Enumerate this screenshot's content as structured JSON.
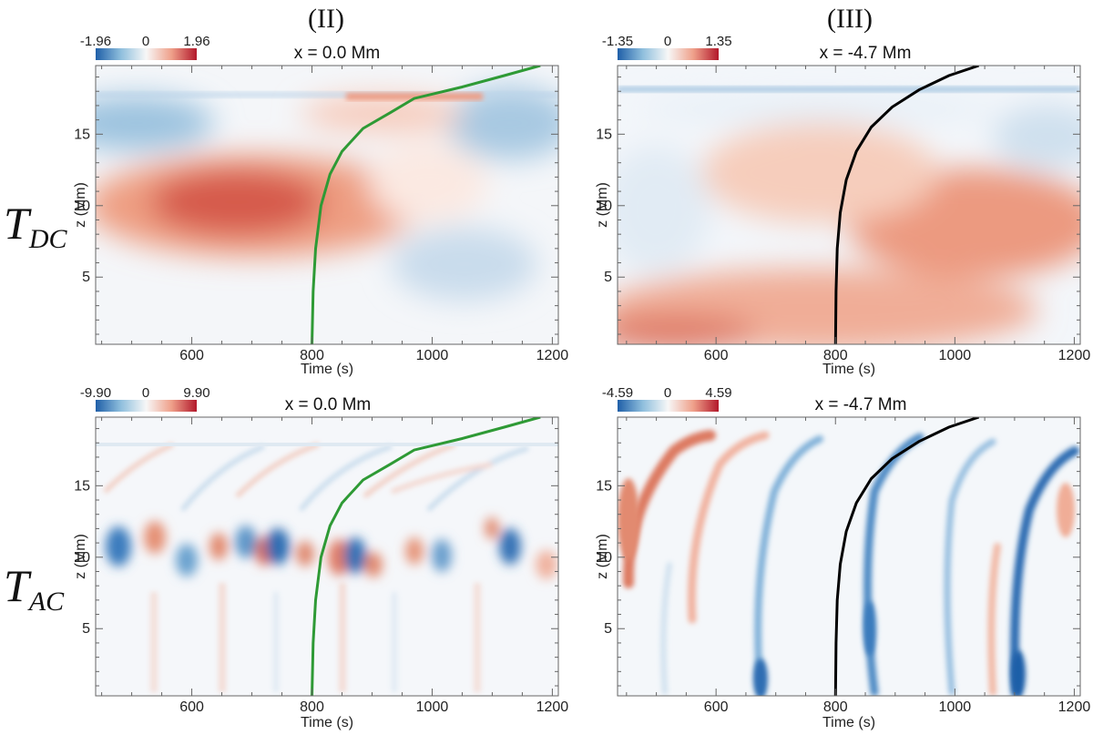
{
  "figure": {
    "column_titles": [
      "(II)",
      "(III)"
    ],
    "row_labels": [
      {
        "main": "T",
        "sub": "DC"
      },
      {
        "main": "T",
        "sub": "AC"
      }
    ]
  },
  "colors": {
    "cmap_negative": "#1f5fa8",
    "cmap_zero": "#f7f7f7",
    "cmap_positive": "#b2182b",
    "track_green": "#2e9a35",
    "track_black": "#000000",
    "frame": "#666666"
  },
  "chart_data": [
    {
      "type": "heatmap",
      "id": "II-DC",
      "title": "x = 0.0 Mm",
      "xlabel": "Time (s)",
      "ylabel": "z (Mm)",
      "xlim": [
        440,
        1210
      ],
      "ylim": [
        0.3,
        19.8
      ],
      "xticks": [
        600,
        800,
        1000,
        1200
      ],
      "yticks": [
        5,
        10,
        15
      ],
      "colorbar": {
        "min": "-1.96",
        "mid": "0",
        "max": "1.96"
      },
      "track_color": "green",
      "track": {
        "t": [
          800,
          802,
          806,
          815,
          830,
          850,
          885,
          930,
          970,
          1050,
          1120,
          1180
        ],
        "z": [
          0.3,
          4,
          7,
          10,
          12.2,
          13.8,
          15.4,
          16.5,
          17.5,
          18.3,
          19.1,
          19.8
        ]
      }
    },
    {
      "type": "heatmap",
      "id": "III-DC",
      "title": "x = -4.7 Mm",
      "xlabel": "Time (s)",
      "ylabel": "z (Mm)",
      "xlim": [
        435,
        1210
      ],
      "ylim": [
        0.3,
        19.8
      ],
      "xticks": [
        600,
        800,
        1000,
        1200
      ],
      "yticks": [
        5,
        10,
        15
      ],
      "colorbar": {
        "min": "-1.35",
        "mid": "0",
        "max": "1.35"
      },
      "track_color": "black",
      "track": {
        "t": [
          800,
          801,
          803,
          808,
          818,
          835,
          860,
          895,
          940,
          990,
          1040
        ],
        "z": [
          0.3,
          4,
          7,
          9.5,
          11.8,
          13.8,
          15.5,
          16.9,
          18.1,
          19.1,
          19.8
        ]
      }
    },
    {
      "type": "heatmap",
      "id": "II-AC",
      "title": "x = 0.0 Mm",
      "xlabel": "Time (s)",
      "ylabel": "z (Mm)",
      "xlim": [
        440,
        1210
      ],
      "ylim": [
        0.3,
        19.8
      ],
      "xticks": [
        600,
        800,
        1000,
        1200
      ],
      "yticks": [
        5,
        10,
        15
      ],
      "colorbar": {
        "min": "-9.90",
        "mid": "0",
        "max": "9.90"
      },
      "track_color": "green",
      "track": {
        "t": [
          800,
          802,
          806,
          815,
          830,
          850,
          885,
          930,
          970,
          1050,
          1120,
          1180
        ],
        "z": [
          0.3,
          4,
          7,
          10,
          12.2,
          13.8,
          15.4,
          16.5,
          17.5,
          18.3,
          19.1,
          19.8
        ]
      }
    },
    {
      "type": "heatmap",
      "id": "III-AC",
      "title": "x = -4.7 Mm",
      "xlabel": "Time (s)",
      "ylabel": "z (Mm)",
      "xlim": [
        435,
        1210
      ],
      "ylim": [
        0.3,
        19.8
      ],
      "xticks": [
        600,
        800,
        1000,
        1200
      ],
      "yticks": [
        5,
        10,
        15
      ],
      "colorbar": {
        "min": "-4.59",
        "mid": "0",
        "max": "4.59"
      },
      "track_color": "black",
      "track": {
        "t": [
          800,
          801,
          803,
          808,
          818,
          835,
          860,
          895,
          940,
          990,
          1040
        ],
        "z": [
          0.3,
          4,
          7,
          9.5,
          11.8,
          13.8,
          15.5,
          16.9,
          18.1,
          19.1,
          19.8
        ]
      }
    }
  ]
}
